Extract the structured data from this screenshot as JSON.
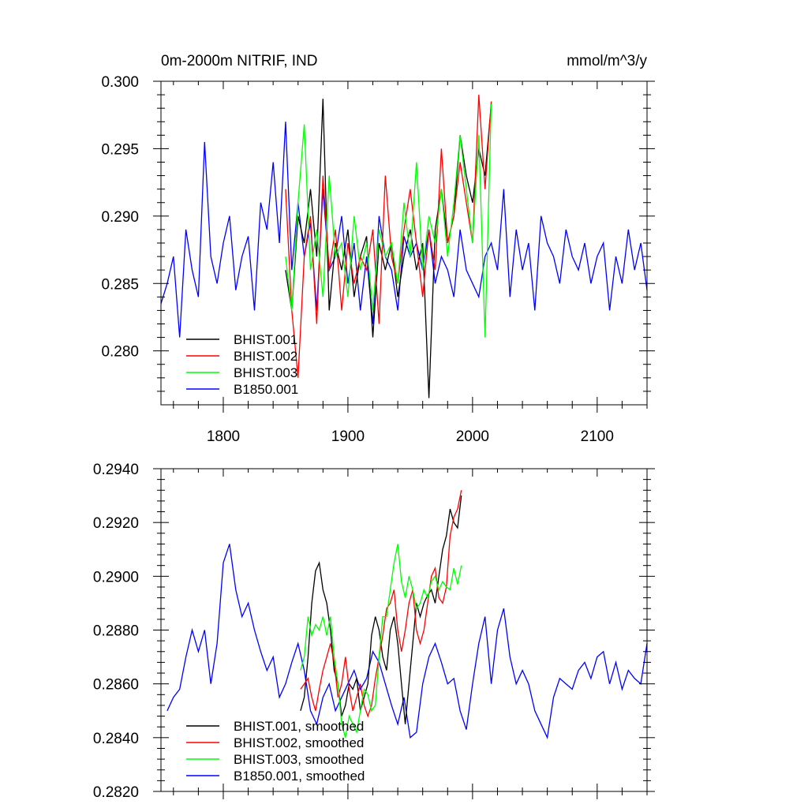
{
  "title_left": "0m-2000m NITRIF, IND",
  "title_right": "mmol/m^3/y",
  "colors": {
    "BHIST.001": "#000000",
    "BHIST.002": "#ff0000",
    "BHIST.003": "#00ff00",
    "B1850.001": "#0000ff"
  },
  "chart_data": [
    {
      "type": "line",
      "title": "0m-2000m NITRIF, IND",
      "units": "mmol/m^3/y",
      "xlim": [
        1750,
        2140
      ],
      "ylim": [
        0.276,
        0.3
      ],
      "x_ticks": [
        1800,
        1900,
        2000,
        2100
      ],
      "x_tick_labels": [
        "1800",
        "1900",
        "2000",
        "2100"
      ],
      "y_ticks": [
        0.28,
        0.285,
        0.29,
        0.295,
        0.3
      ],
      "y_tick_labels": [
        "0.280",
        "0.285",
        "0.290",
        "0.295",
        "0.300"
      ],
      "legend": [
        "BHIST.001",
        "BHIST.002",
        "BHIST.003",
        "B1850.001"
      ],
      "legend_location": "lower-left",
      "series": [
        {
          "name": "B1850.001",
          "color": "#0000ff",
          "x_start": 1750,
          "x_step": 5,
          "values": [
            0.2835,
            0.285,
            0.287,
            0.281,
            0.289,
            0.286,
            0.284,
            0.2955,
            0.287,
            0.285,
            0.288,
            0.29,
            0.2845,
            0.287,
            0.2885,
            0.283,
            0.291,
            0.289,
            0.294,
            0.288,
            0.297,
            0.286,
            0.291,
            0.287,
            0.2895,
            0.283,
            0.292,
            0.286,
            0.287,
            0.29,
            0.285,
            0.288,
            0.283,
            0.287,
            0.282,
            0.29,
            0.287,
            0.286,
            0.283,
            0.2885,
            0.287,
            0.288,
            0.286,
            0.289,
            0.285,
            0.287,
            0.286,
            0.284,
            0.289,
            0.286,
            0.285,
            0.284,
            0.287,
            0.288,
            0.286,
            0.292,
            0.284,
            0.289,
            0.286,
            0.288,
            0.283,
            0.29,
            0.288,
            0.287,
            0.285,
            0.289,
            0.287,
            0.286,
            0.288,
            0.285,
            0.287,
            0.288,
            0.283,
            0.287,
            0.285,
            0.289,
            0.286,
            0.288,
            0.2845
          ]
        },
        {
          "name": "BHIST.001",
          "color": "#000000",
          "x_start": 1850,
          "x_step": 5,
          "values": [
            0.286,
            0.283,
            0.29,
            0.288,
            0.292,
            0.287,
            0.2987,
            0.283,
            0.288,
            0.286,
            0.289,
            0.284,
            0.287,
            0.2885,
            0.281,
            0.288,
            0.286,
            0.288,
            0.284,
            0.287,
            0.289,
            0.286,
            0.288,
            0.2765,
            0.289,
            0.292,
            0.288,
            0.29,
            0.296,
            0.293,
            0.291,
            0.295,
            0.293,
            0.2983
          ]
        },
        {
          "name": "BHIST.002",
          "color": "#ff0000",
          "x_start": 1850,
          "x_step": 5,
          "values": [
            0.292,
            0.283,
            0.278,
            0.287,
            0.29,
            0.282,
            0.293,
            0.286,
            0.289,
            0.283,
            0.288,
            0.285,
            0.287,
            0.286,
            0.289,
            0.282,
            0.293,
            0.287,
            0.285,
            0.289,
            0.292,
            0.288,
            0.284,
            0.289,
            0.286,
            0.295,
            0.288,
            0.29,
            0.294,
            0.291,
            0.288,
            0.299,
            0.292,
            0.2985
          ]
        },
        {
          "name": "BHIST.003",
          "color": "#00ff00",
          "x_start": 1850,
          "x_step": 5,
          "values": [
            0.287,
            0.283,
            0.291,
            0.2968,
            0.286,
            0.289,
            0.284,
            0.293,
            0.287,
            0.288,
            0.284,
            0.29,
            0.286,
            0.288,
            0.283,
            0.289,
            0.287,
            0.288,
            0.285,
            0.291,
            0.287,
            0.294,
            0.286,
            0.29,
            0.288,
            0.292,
            0.287,
            0.291,
            0.296,
            0.292,
            0.288,
            0.296,
            0.281,
            0.2983
          ]
        }
      ]
    },
    {
      "type": "line",
      "title": "",
      "xlim": [
        1750,
        2140
      ],
      "ylim": [
        0.282,
        0.294
      ],
      "x_ticks": [
        1800,
        1900,
        2000,
        2100
      ],
      "y_ticks": [
        0.282,
        0.284,
        0.286,
        0.288,
        0.29,
        0.292,
        0.294
      ],
      "y_tick_labels": [
        "0.2820",
        "0.2840",
        "0.2860",
        "0.2880",
        "0.2900",
        "0.2920",
        "0.2940"
      ],
      "legend": [
        "BHIST.001, smoothed",
        "BHIST.002, smoothed",
        "BHIST.003, smoothed",
        "B1850.001, smoothed"
      ],
      "legend_location": "lower-left",
      "series": [
        {
          "name": "B1850.001, smoothed",
          "color": "#0000ff",
          "x_start": 1755,
          "x_step": 5,
          "values": [
            0.285,
            0.2855,
            0.2858,
            0.287,
            0.288,
            0.2872,
            0.288,
            0.286,
            0.2875,
            0.2905,
            0.2912,
            0.2895,
            0.2885,
            0.289,
            0.288,
            0.2872,
            0.2865,
            0.287,
            0.2855,
            0.286,
            0.2868,
            0.2875,
            0.2865,
            0.285,
            0.2845,
            0.2855,
            0.286,
            0.285,
            0.2855,
            0.286,
            0.2865,
            0.2858,
            0.2862,
            0.2872,
            0.2868,
            0.286,
            0.2852,
            0.2845,
            0.2855,
            0.284,
            0.2842,
            0.286,
            0.287,
            0.2875,
            0.2868,
            0.286,
            0.2862,
            0.285,
            0.2843,
            0.286,
            0.2875,
            0.2885,
            0.286,
            0.288,
            0.2888,
            0.287,
            0.286,
            0.2865,
            0.286,
            0.285,
            0.2845,
            0.284,
            0.2855,
            0.2862,
            0.286,
            0.2858,
            0.2865,
            0.2868,
            0.2862,
            0.287,
            0.2872,
            0.286,
            0.2868,
            0.2858,
            0.2865,
            0.2862,
            0.286,
            0.2875
          ]
        },
        {
          "name": "BHIST.001, smoothed",
          "color": "#000000",
          "x_start": 1862,
          "x_step": 3,
          "values": [
            0.285,
            0.2855,
            0.287,
            0.289,
            0.2902,
            0.2905,
            0.2895,
            0.289,
            0.288,
            0.2865,
            0.286,
            0.2848,
            0.2852,
            0.286,
            0.2858,
            0.2862,
            0.285,
            0.2855,
            0.286,
            0.2878,
            0.2885,
            0.288,
            0.287,
            0.2865,
            0.288,
            0.2885,
            0.2875,
            0.286,
            0.2845,
            0.286,
            0.2875,
            0.289,
            0.2885,
            0.289,
            0.2893,
            0.2895,
            0.289,
            0.29,
            0.291,
            0.2915,
            0.2925,
            0.292,
            0.2918,
            0.293
          ]
        },
        {
          "name": "BHIST.002, smoothed",
          "color": "#ff0000",
          "x_start": 1862,
          "x_step": 3,
          "values": [
            0.2858,
            0.286,
            0.2862,
            0.2855,
            0.285,
            0.2858,
            0.2865,
            0.287,
            0.2875,
            0.2868,
            0.2855,
            0.286,
            0.287,
            0.2858,
            0.285,
            0.2855,
            0.286,
            0.2852,
            0.2848,
            0.2852,
            0.2862,
            0.287,
            0.2878,
            0.2888,
            0.289,
            0.2895,
            0.288,
            0.2872,
            0.288,
            0.289,
            0.2895,
            0.288,
            0.2875,
            0.288,
            0.289,
            0.29,
            0.2903,
            0.2892,
            0.289,
            0.2896,
            0.2915,
            0.2922,
            0.2925,
            0.2932
          ]
        },
        {
          "name": "BHIST.003, smoothed",
          "color": "#00ff00",
          "x_start": 1862,
          "x_step": 3,
          "values": [
            0.2865,
            0.287,
            0.2885,
            0.2878,
            0.2882,
            0.288,
            0.2885,
            0.2878,
            0.2885,
            0.287,
            0.286,
            0.2845,
            0.284,
            0.2848,
            0.2845,
            0.2842,
            0.285,
            0.2858,
            0.2856,
            0.285,
            0.2852,
            0.287,
            0.2885,
            0.2885,
            0.2895,
            0.2905,
            0.2912,
            0.2898,
            0.2892,
            0.29,
            0.2895,
            0.2888,
            0.289,
            0.2895,
            0.2892,
            0.2898,
            0.29,
            0.2895,
            0.2898,
            0.2896,
            0.2895,
            0.2903,
            0.2897,
            0.2904
          ]
        }
      ]
    }
  ]
}
